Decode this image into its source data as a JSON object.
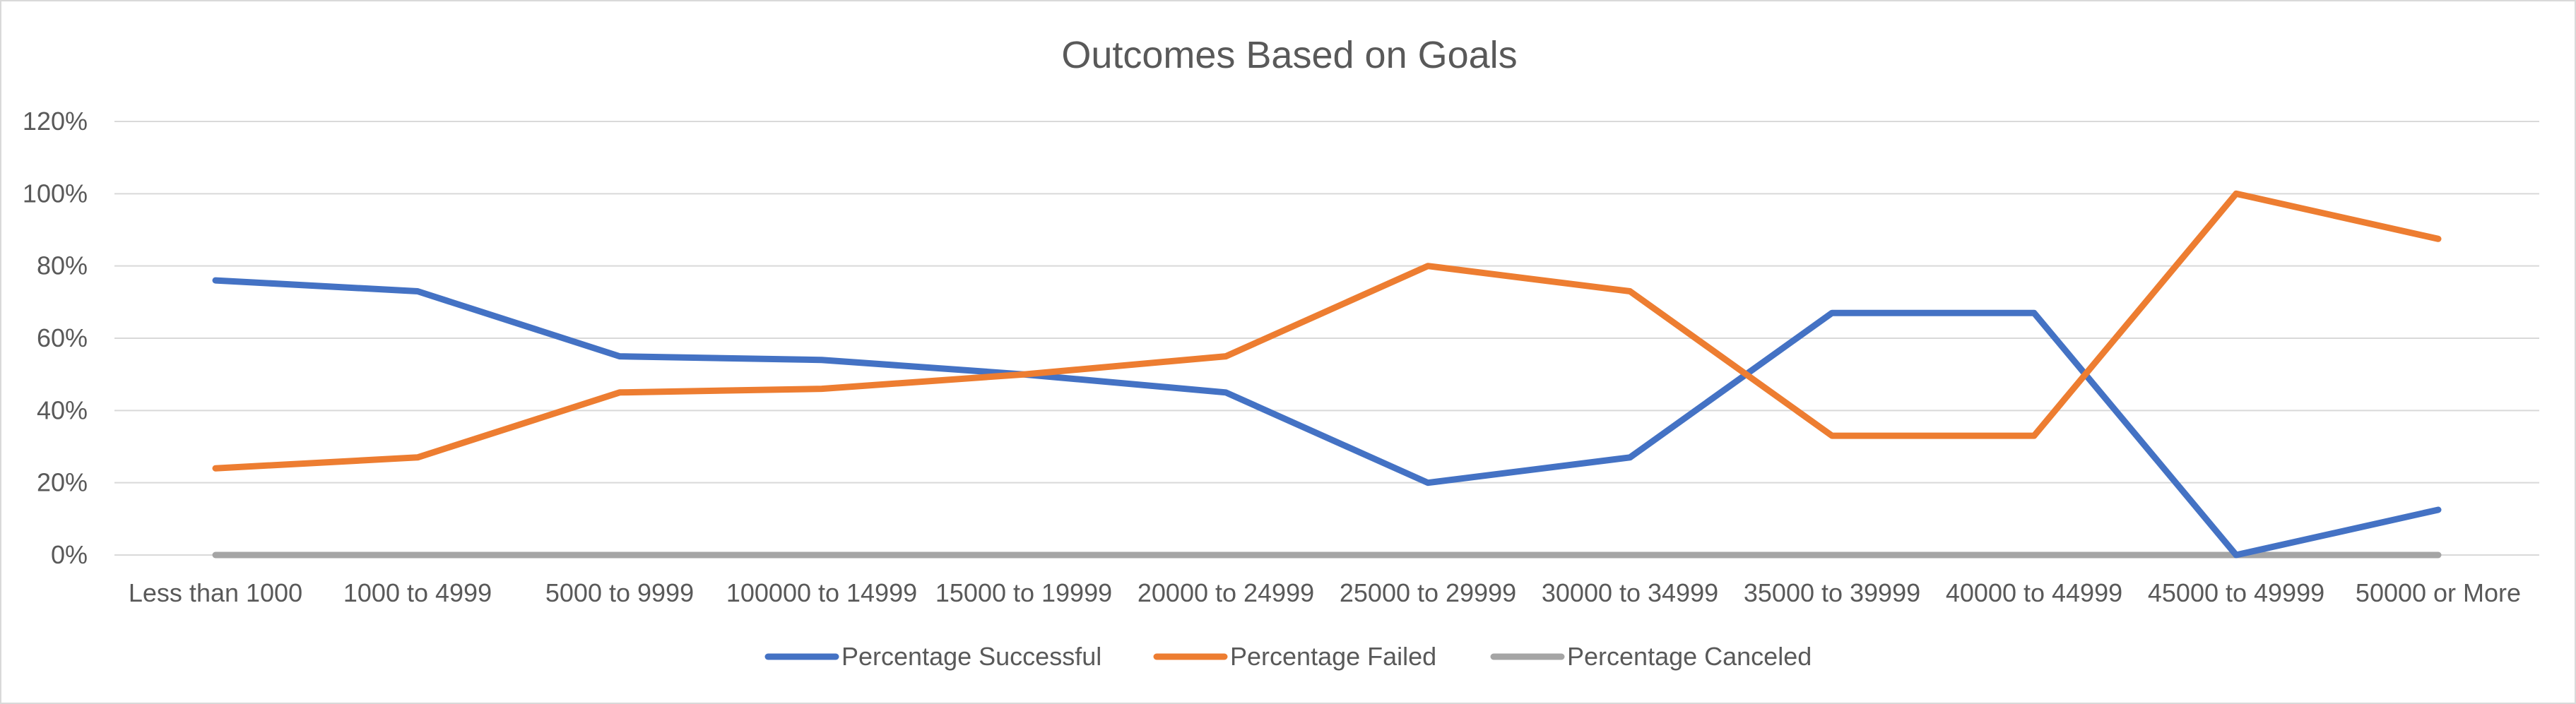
{
  "chart_data": {
    "type": "line",
    "title": "Outcomes Based on Goals",
    "xlabel": "",
    "ylabel": "",
    "categories": [
      "Less than 1000",
      "1000 to 4999",
      "5000 to 9999",
      "100000 to 14999",
      "15000 to 19999",
      "20000 to 24999",
      "25000 to 29999",
      "30000 to 34999",
      "35000 to 39999",
      "40000 to 44999",
      "45000 to 49999",
      "50000 or More"
    ],
    "ylim": [
      0,
      1.2
    ],
    "yticks": [
      0,
      0.2,
      0.4,
      0.6,
      0.8,
      1.0,
      1.2
    ],
    "ytick_labels": [
      "0%",
      "20%",
      "40%",
      "60%",
      "80%",
      "100%",
      "120%"
    ],
    "grid": true,
    "legend_position": "bottom",
    "series": [
      {
        "name": "Percentage Successful",
        "color": "#4472c4",
        "values": [
          0.76,
          0.73,
          0.55,
          0.54,
          0.5,
          0.45,
          0.2,
          0.27,
          0.67,
          0.67,
          0.0,
          0.125
        ]
      },
      {
        "name": "Percentage Failed",
        "color": "#ed7d31",
        "values": [
          0.24,
          0.27,
          0.45,
          0.46,
          0.5,
          0.55,
          0.8,
          0.73,
          0.33,
          0.33,
          1.0,
          0.875
        ]
      },
      {
        "name": "Percentage Canceled",
        "color": "#a5a5a5",
        "values": [
          0,
          0,
          0,
          0,
          0,
          0,
          0,
          0,
          0,
          0,
          0,
          0
        ]
      }
    ]
  }
}
